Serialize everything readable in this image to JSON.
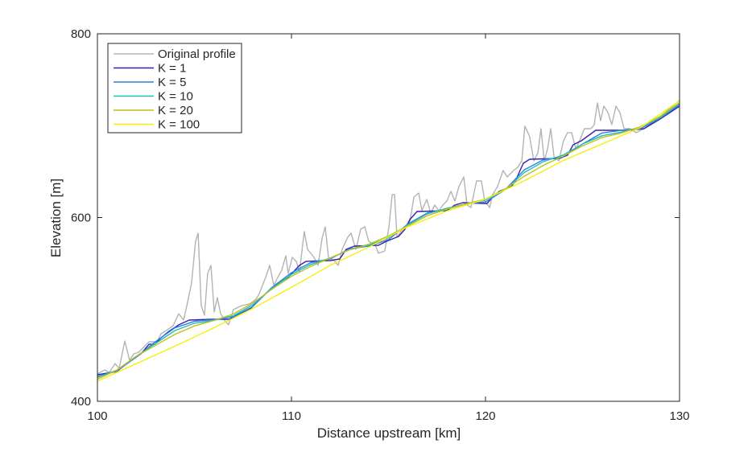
{
  "chart_data": {
    "type": "line",
    "title": "",
    "xlabel": "Distance upstream [km]",
    "ylabel": "Elevation [m]",
    "xlim": [
      100,
      130
    ],
    "ylim": [
      400,
      800
    ],
    "xticks": [
      100,
      110,
      120,
      130
    ],
    "yticks": [
      400,
      600,
      800
    ],
    "grid": false,
    "legend_placement": "top-left",
    "series": [
      {
        "name": "Original profile",
        "color": "#b3b3b3",
        "points": [
          [
            100.0,
            429.8
          ],
          [
            100.37,
            434.1
          ],
          [
            100.62,
            431.5
          ],
          [
            100.91,
            441.1
          ],
          [
            101.12,
            435.9
          ],
          [
            101.41,
            465.6
          ],
          [
            101.66,
            444.6
          ],
          [
            101.87,
            451.6
          ],
          [
            102.12,
            453.4
          ],
          [
            102.66,
            464.8
          ],
          [
            103.07,
            464.8
          ],
          [
            103.28,
            473.5
          ],
          [
            103.61,
            477.9
          ],
          [
            103.9,
            482.3
          ],
          [
            104.19,
            495.4
          ],
          [
            104.44,
            488.4
          ],
          [
            104.61,
            504.2
          ],
          [
            104.85,
            528.7
          ],
          [
            105.06,
            574.2
          ],
          [
            105.19,
            582.9
          ],
          [
            105.35,
            504.2
          ],
          [
            105.52,
            493.7
          ],
          [
            105.68,
            539.2
          ],
          [
            105.85,
            547.9
          ],
          [
            106.02,
            497.2
          ],
          [
            106.18,
            512.9
          ],
          [
            106.35,
            495.4
          ],
          [
            106.6,
            486.7
          ],
          [
            106.76,
            483.2
          ],
          [
            107.01,
            499.8
          ],
          [
            107.43,
            504.2
          ],
          [
            107.84,
            505.9
          ],
          [
            108.17,
            511.2
          ],
          [
            108.34,
            517.3
          ],
          [
            108.67,
            534.8
          ],
          [
            108.88,
            547.9
          ],
          [
            109.09,
            526.0
          ],
          [
            109.29,
            534.8
          ],
          [
            109.5,
            542.7
          ],
          [
            109.71,
            558.4
          ],
          [
            109.83,
            539.2
          ],
          [
            110.04,
            556.7
          ],
          [
            110.25,
            552.3
          ],
          [
            110.41,
            540.9
          ],
          [
            110.66,
            584.7
          ],
          [
            110.83,
            565.4
          ],
          [
            111.16,
            556.7
          ],
          [
            111.37,
            547.9
          ],
          [
            111.58,
            577.7
          ],
          [
            111.74,
            589.9
          ],
          [
            111.91,
            556.7
          ],
          [
            112.2,
            553.2
          ],
          [
            112.41,
            547.9
          ],
          [
            112.61,
            565.4
          ],
          [
            112.9,
            578.6
          ],
          [
            113.07,
            582.9
          ],
          [
            113.32,
            565.4
          ],
          [
            113.57,
            587.3
          ],
          [
            113.78,
            589.9
          ],
          [
            113.98,
            574.2
          ],
          [
            114.32,
            569.8
          ],
          [
            114.48,
            561.1
          ],
          [
            114.81,
            563.7
          ],
          [
            115.02,
            589.1
          ],
          [
            115.19,
            625.0
          ],
          [
            115.31,
            625.0
          ],
          [
            115.44,
            578.6
          ],
          [
            115.64,
            584.7
          ],
          [
            115.93,
            591.7
          ],
          [
            116.14,
            600.4
          ],
          [
            116.31,
            622.3
          ],
          [
            116.56,
            626.7
          ],
          [
            116.72,
            607.4
          ],
          [
            116.97,
            619.7
          ],
          [
            117.18,
            604.8
          ],
          [
            117.39,
            613.6
          ],
          [
            117.59,
            607.4
          ],
          [
            117.8,
            613.6
          ],
          [
            118.01,
            617.9
          ],
          [
            118.22,
            628.5
          ],
          [
            118.42,
            617.9
          ],
          [
            118.63,
            633.7
          ],
          [
            118.88,
            644.2
          ],
          [
            119.05,
            613.6
          ],
          [
            119.25,
            610.9
          ],
          [
            119.54,
            639.8
          ],
          [
            119.79,
            639.8
          ],
          [
            119.96,
            617.9
          ],
          [
            120.21,
            610.9
          ],
          [
            120.37,
            625.0
          ],
          [
            120.62,
            633.7
          ],
          [
            120.91,
            651.2
          ],
          [
            121.12,
            644.2
          ],
          [
            121.45,
            651.2
          ],
          [
            121.66,
            654.7
          ],
          [
            121.87,
            661.7
          ],
          [
            122.03,
            699.4
          ],
          [
            122.28,
            688.0
          ],
          [
            122.49,
            661.7
          ],
          [
            122.7,
            670.5
          ],
          [
            122.86,
            696.7
          ],
          [
            123.03,
            661.7
          ],
          [
            123.2,
            674.8
          ],
          [
            123.36,
            696.7
          ],
          [
            123.53,
            666.1
          ],
          [
            123.78,
            661.7
          ],
          [
            124.02,
            683.6
          ],
          [
            124.23,
            692.4
          ],
          [
            124.44,
            692.4
          ],
          [
            124.65,
            674.8
          ],
          [
            124.85,
            683.6
          ],
          [
            125.1,
            696.7
          ],
          [
            125.44,
            696.7
          ],
          [
            125.6,
            701.1
          ],
          [
            125.77,
            724.7
          ],
          [
            125.93,
            705.5
          ],
          [
            126.1,
            721.2
          ],
          [
            126.31,
            714.2
          ],
          [
            126.51,
            701.1
          ],
          [
            126.72,
            721.2
          ],
          [
            126.93,
            714.2
          ],
          [
            127.14,
            696.7
          ],
          [
            127.43,
            696.7
          ],
          [
            127.76,
            692.4
          ],
          [
            128.17,
            696.7
          ],
          [
            129.0,
            709.9
          ],
          [
            130.0,
            727.4
          ]
        ]
      },
      {
        "name": "K = 1",
        "color": "#3a1fa8",
        "points": [
          [
            100.0,
            428.9
          ],
          [
            101.0,
            432.4
          ],
          [
            101.62,
            442.9
          ],
          [
            102.24,
            451.6
          ],
          [
            102.66,
            462.1
          ],
          [
            102.95,
            462.1
          ],
          [
            103.28,
            469.1
          ],
          [
            103.69,
            476.2
          ],
          [
            104.19,
            483.2
          ],
          [
            104.73,
            488.4
          ],
          [
            105.85,
            489.3
          ],
          [
            106.8,
            489.3
          ],
          [
            107.22,
            493.7
          ],
          [
            107.84,
            499.8
          ],
          [
            108.67,
            517.3
          ],
          [
            109.29,
            528.7
          ],
          [
            109.83,
            534.8
          ],
          [
            110.41,
            547.9
          ],
          [
            110.75,
            552.3
          ],
          [
            111.99,
            553.2
          ],
          [
            112.49,
            554.9
          ],
          [
            112.82,
            565.4
          ],
          [
            113.24,
            568.9
          ],
          [
            114.48,
            569.8
          ],
          [
            114.9,
            574.2
          ],
          [
            115.52,
            579.4
          ],
          [
            115.85,
            587.3
          ],
          [
            116.14,
            598.7
          ],
          [
            116.47,
            606.6
          ],
          [
            118.01,
            607.4
          ],
          [
            118.42,
            613.6
          ],
          [
            118.84,
            616.2
          ],
          [
            119.88,
            615.3
          ],
          [
            120.08,
            615.3
          ],
          [
            120.37,
            622.3
          ],
          [
            120.71,
            628.5
          ],
          [
            121.33,
            633.7
          ],
          [
            121.54,
            639.8
          ],
          [
            121.95,
            659.1
          ],
          [
            122.28,
            663.5
          ],
          [
            123.82,
            664.3
          ],
          [
            124.23,
            667.8
          ],
          [
            124.52,
            679.2
          ],
          [
            124.94,
            683.6
          ],
          [
            125.68,
            695.0
          ],
          [
            127.34,
            695.0
          ],
          [
            128.17,
            696.7
          ],
          [
            129.0,
            707.2
          ],
          [
            130.0,
            721.2
          ]
        ]
      },
      {
        "name": "K = 5",
        "color": "#2f7fe8",
        "points": [
          [
            100,
            427
          ],
          [
            101,
            433
          ],
          [
            102,
            448
          ],
          [
            103,
            465
          ],
          [
            104,
            480
          ],
          [
            105,
            487
          ],
          [
            106,
            489
          ],
          [
            107,
            492
          ],
          [
            108,
            503
          ],
          [
            109,
            524
          ],
          [
            110,
            540
          ],
          [
            111,
            551
          ],
          [
            112,
            555
          ],
          [
            113,
            566
          ],
          [
            114,
            569
          ],
          [
            115,
            576
          ],
          [
            116,
            593
          ],
          [
            117,
            605
          ],
          [
            118,
            609
          ],
          [
            119,
            615
          ],
          [
            120,
            617
          ],
          [
            121,
            630
          ],
          [
            122,
            652
          ],
          [
            123,
            663
          ],
          [
            124,
            666
          ],
          [
            125,
            680
          ],
          [
            126,
            692
          ],
          [
            127,
            695
          ],
          [
            128,
            697
          ],
          [
            129,
            708
          ],
          [
            130,
            723
          ]
        ]
      },
      {
        "name": "K = 10",
        "color": "#1fbfb8",
        "points": [
          [
            100,
            426
          ],
          [
            101,
            434
          ],
          [
            102,
            449
          ],
          [
            103,
            463
          ],
          [
            104,
            477
          ],
          [
            105,
            485
          ],
          [
            106,
            488
          ],
          [
            107,
            493
          ],
          [
            108,
            505
          ],
          [
            109,
            523
          ],
          [
            110,
            538
          ],
          [
            111,
            549
          ],
          [
            112,
            556
          ],
          [
            113,
            565
          ],
          [
            114,
            570
          ],
          [
            115,
            578
          ],
          [
            116,
            592
          ],
          [
            117,
            604
          ],
          [
            118,
            610
          ],
          [
            119,
            615
          ],
          [
            120,
            619
          ],
          [
            121,
            630
          ],
          [
            122,
            649
          ],
          [
            123,
            661
          ],
          [
            124,
            668
          ],
          [
            125,
            680
          ],
          [
            126,
            689
          ],
          [
            127,
            693
          ],
          [
            128,
            698
          ],
          [
            129,
            709
          ],
          [
            130,
            724
          ]
        ]
      },
      {
        "name": "K = 20",
        "color": "#bfbf1f",
        "points": [
          [
            100,
            424
          ],
          [
            101,
            434
          ],
          [
            102,
            449
          ],
          [
            103,
            461
          ],
          [
            104,
            473
          ],
          [
            105,
            482
          ],
          [
            106,
            488
          ],
          [
            107,
            495
          ],
          [
            108,
            507
          ],
          [
            109,
            522
          ],
          [
            110,
            536
          ],
          [
            111,
            547
          ],
          [
            112,
            556
          ],
          [
            113,
            565
          ],
          [
            114,
            571
          ],
          [
            115,
            580
          ],
          [
            116,
            591
          ],
          [
            117,
            602
          ],
          [
            118,
            609
          ],
          [
            119,
            615
          ],
          [
            120,
            620
          ],
          [
            121,
            631
          ],
          [
            122,
            645
          ],
          [
            123,
            657
          ],
          [
            124,
            667
          ],
          [
            125,
            678
          ],
          [
            126,
            687
          ],
          [
            127,
            692
          ],
          [
            128,
            699
          ],
          [
            129,
            710
          ],
          [
            130,
            725
          ]
        ]
      },
      {
        "name": "K = 100",
        "color": "#f5ee10",
        "points": [
          [
            100,
            422
          ],
          [
            102,
            441
          ],
          [
            104,
            460
          ],
          [
            106,
            480
          ],
          [
            108,
            501
          ],
          [
            110,
            524
          ],
          [
            112,
            548
          ],
          [
            114,
            568
          ],
          [
            116,
            590
          ],
          [
            118,
            607
          ],
          [
            120,
            620
          ],
          [
            122,
            640
          ],
          [
            124,
            662
          ],
          [
            126,
            680
          ],
          [
            128,
            698
          ],
          [
            130,
            727
          ]
        ]
      }
    ]
  }
}
